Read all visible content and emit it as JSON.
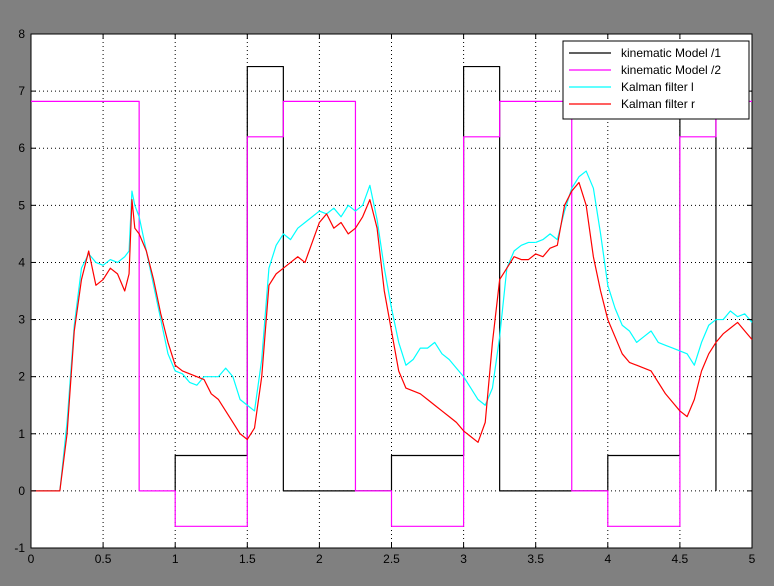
{
  "chart_data": {
    "type": "line",
    "title": "",
    "xlabel": "",
    "ylabel": "",
    "xlim": [
      0,
      5
    ],
    "ylim": [
      -1,
      8
    ],
    "xticks": [
      "0",
      "0.5",
      "1",
      "1.5",
      "2",
      "2.5",
      "3",
      "3.5",
      "4",
      "4.5",
      "5"
    ],
    "yticks": [
      "-1",
      "0",
      "1",
      "2",
      "3",
      "4",
      "5",
      "6",
      "7",
      "8"
    ],
    "grid": true,
    "legend_position": "top-right",
    "series": [
      {
        "name": "kinematic Model   /1",
        "color": "#000000",
        "style": "step",
        "x": [
          1.0,
          1.0,
          1.5,
          1.5,
          1.75,
          1.75,
          2.5,
          2.5,
          3.0,
          3.0,
          3.25,
          3.25,
          4.0,
          4.0,
          4.5,
          4.5,
          4.75,
          4.75
        ],
        "y": [
          0,
          0.62,
          0.62,
          7.43,
          7.43,
          0,
          0,
          0.62,
          0.62,
          7.43,
          7.43,
          0,
          0,
          0.62,
          0.62,
          7.43,
          7.43,
          0
        ]
      },
      {
        "name": "kinematic Model   /2",
        "color": "#ff00ff",
        "style": "step",
        "x": [
          0,
          0.75,
          0.75,
          1.0,
          1.0,
          1.5,
          1.5,
          1.75,
          1.75,
          2.25,
          2.25,
          2.5,
          2.5,
          3.0,
          3.0,
          3.25,
          3.25,
          3.75,
          3.75,
          4.0,
          4.0,
          4.5,
          4.5,
          4.75,
          4.75,
          5.0
        ],
        "y": [
          6.82,
          6.82,
          0,
          0,
          -0.62,
          -0.62,
          6.2,
          6.2,
          6.82,
          6.82,
          0,
          0,
          -0.62,
          -0.62,
          6.2,
          6.2,
          6.82,
          6.82,
          0,
          0,
          -0.62,
          -0.62,
          6.2,
          6.2,
          6.82,
          6.82
        ]
      },
      {
        "name": "Kalman filter l",
        "color": "#00ffff",
        "x": [
          0,
          0.1,
          0.2,
          0.25,
          0.3,
          0.35,
          0.4,
          0.45,
          0.5,
          0.55,
          0.6,
          0.65,
          0.68,
          0.7,
          0.72,
          0.75,
          0.8,
          0.85,
          0.9,
          0.95,
          1.0,
          1.05,
          1.1,
          1.15,
          1.2,
          1.25,
          1.3,
          1.35,
          1.4,
          1.45,
          1.5,
          1.55,
          1.6,
          1.65,
          1.7,
          1.75,
          1.8,
          1.85,
          1.9,
          2.0,
          2.05,
          2.1,
          2.15,
          2.2,
          2.25,
          2.3,
          2.35,
          2.4,
          2.45,
          2.5,
          2.55,
          2.6,
          2.65,
          2.7,
          2.75,
          2.8,
          2.85,
          2.9,
          2.95,
          3.0,
          3.05,
          3.1,
          3.15,
          3.2,
          3.25,
          3.3,
          3.35,
          3.4,
          3.45,
          3.5,
          3.55,
          3.6,
          3.65,
          3.7,
          3.75,
          3.8,
          3.85,
          3.9,
          3.95,
          4.0,
          4.05,
          4.1,
          4.15,
          4.2,
          4.25,
          4.3,
          4.35,
          4.4,
          4.45,
          4.5,
          4.55,
          4.6,
          4.65,
          4.7,
          4.75,
          4.8,
          4.85,
          4.9,
          4.95,
          5.0
        ],
        "y": [
          0,
          0,
          0,
          1.2,
          2.9,
          3.9,
          4.15,
          4.0,
          3.95,
          4.05,
          4.0,
          4.1,
          4.2,
          5.25,
          5.0,
          4.8,
          4.2,
          3.6,
          3.0,
          2.4,
          2.1,
          2.05,
          1.9,
          1.85,
          2.0,
          2.0,
          2.0,
          2.15,
          2.0,
          1.6,
          1.5,
          1.4,
          2.3,
          3.9,
          4.3,
          4.5,
          4.4,
          4.6,
          4.7,
          4.9,
          4.85,
          4.95,
          4.8,
          5.0,
          4.9,
          5.0,
          5.35,
          4.75,
          3.9,
          3.2,
          2.6,
          2.2,
          2.3,
          2.5,
          2.5,
          2.6,
          2.4,
          2.3,
          2.15,
          2.0,
          1.8,
          1.6,
          1.5,
          1.8,
          2.7,
          3.9,
          4.2,
          4.3,
          4.35,
          4.35,
          4.4,
          4.5,
          4.4,
          4.9,
          5.3,
          5.5,
          5.6,
          5.3,
          4.5,
          3.6,
          3.2,
          2.9,
          2.8,
          2.6,
          2.7,
          2.8,
          2.6,
          2.55,
          2.5,
          2.45,
          2.4,
          2.2,
          2.6,
          2.9,
          3.0,
          3.0,
          3.15,
          3.05,
          3.1,
          2.95
        ]
      },
      {
        "name": "Kalman filter r",
        "color": "#ff0000",
        "x": [
          0,
          0.1,
          0.2,
          0.25,
          0.3,
          0.35,
          0.4,
          0.45,
          0.5,
          0.55,
          0.6,
          0.65,
          0.68,
          0.7,
          0.72,
          0.75,
          0.8,
          0.85,
          0.9,
          0.95,
          1.0,
          1.05,
          1.1,
          1.15,
          1.2,
          1.25,
          1.3,
          1.35,
          1.4,
          1.45,
          1.5,
          1.55,
          1.6,
          1.65,
          1.7,
          1.75,
          1.8,
          1.85,
          1.9,
          2.0,
          2.05,
          2.1,
          2.15,
          2.2,
          2.25,
          2.3,
          2.35,
          2.4,
          2.45,
          2.5,
          2.55,
          2.6,
          2.65,
          2.7,
          2.75,
          2.8,
          2.85,
          2.9,
          2.95,
          3.0,
          3.05,
          3.1,
          3.15,
          3.2,
          3.25,
          3.3,
          3.35,
          3.4,
          3.45,
          3.5,
          3.55,
          3.6,
          3.65,
          3.7,
          3.75,
          3.8,
          3.85,
          3.9,
          3.95,
          4.0,
          4.05,
          4.1,
          4.15,
          4.2,
          4.25,
          4.3,
          4.35,
          4.4,
          4.45,
          4.5,
          4.55,
          4.6,
          4.65,
          4.7,
          4.75,
          4.8,
          4.85,
          4.9,
          4.95,
          5.0
        ],
        "y": [
          0,
          0,
          0,
          1.0,
          2.8,
          3.7,
          4.2,
          3.6,
          3.7,
          3.9,
          3.8,
          3.5,
          3.8,
          5.1,
          4.6,
          4.5,
          4.2,
          3.7,
          3.1,
          2.6,
          2.2,
          2.1,
          2.05,
          2.0,
          1.95,
          1.7,
          1.6,
          1.4,
          1.2,
          1.0,
          0.9,
          1.1,
          2.0,
          3.6,
          3.8,
          3.9,
          4.0,
          4.1,
          4.0,
          4.7,
          4.85,
          4.6,
          4.7,
          4.5,
          4.6,
          4.8,
          5.1,
          4.6,
          3.5,
          2.8,
          2.1,
          1.8,
          1.75,
          1.7,
          1.6,
          1.5,
          1.4,
          1.3,
          1.2,
          1.05,
          0.95,
          0.85,
          1.2,
          2.6,
          3.7,
          3.9,
          4.1,
          4.05,
          4.05,
          4.15,
          4.1,
          4.25,
          4.3,
          5.0,
          5.25,
          5.4,
          5.0,
          4.1,
          3.5,
          3.0,
          2.7,
          2.4,
          2.25,
          2.2,
          2.15,
          2.1,
          1.9,
          1.7,
          1.55,
          1.4,
          1.3,
          1.6,
          2.1,
          2.4,
          2.6,
          2.75,
          2.85,
          2.95,
          2.8,
          2.65
        ]
      }
    ]
  }
}
